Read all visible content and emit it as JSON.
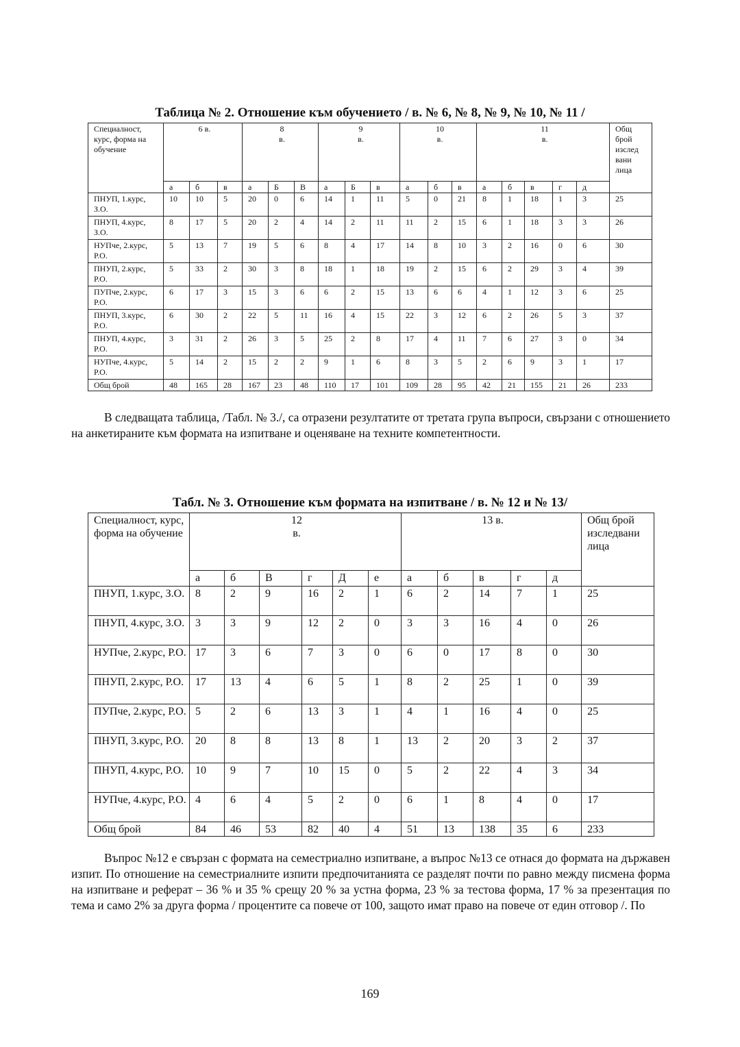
{
  "table2": {
    "caption": "Таблица № 2. Отношение към обучението / в. № 6, № 8, № 9, № 10, № 11 /",
    "row_header": "Специалност, курс, форма на обучение",
    "groups": [
      {
        "label_line1": "6 в.",
        "label_line2": "",
        "options": [
          "а",
          "б",
          "в"
        ]
      },
      {
        "label_line1": "8",
        "label_line2": "в.",
        "options": [
          "а",
          "Б",
          "В"
        ]
      },
      {
        "label_line1": "9",
        "label_line2": "в.",
        "options": [
          "а",
          "Б",
          "в"
        ]
      },
      {
        "label_line1": "10",
        "label_line2": "в.",
        "options": [
          "а",
          "б",
          "в"
        ]
      },
      {
        "label_line1": "11",
        "label_line2": "в.",
        "options": [
          "а",
          "б",
          "в",
          "г",
          "д"
        ]
      }
    ],
    "total_header": "Общ брой изслед вани лица",
    "rows": [
      {
        "label": "ПНУП, 1.курс, З.О.",
        "values": [
          "10",
          "10",
          "5",
          "20",
          "0",
          "6",
          "14",
          "1",
          "11",
          "5",
          "0",
          "21",
          "8",
          "1",
          "18",
          "1",
          "3"
        ],
        "total": "25"
      },
      {
        "label": "ПНУП, 4.курс, З.О.",
        "values": [
          "8",
          "17",
          "5",
          "20",
          "2",
          "4",
          "14",
          "2",
          "11",
          "11",
          "2",
          "15",
          "6",
          "1",
          "18",
          "3",
          "3"
        ],
        "total": "26"
      },
      {
        "label": "НУПче, 2.курс, Р.О.",
        "values": [
          "5",
          "13",
          "7",
          "19",
          "5",
          "6",
          "8",
          "4",
          "17",
          "14",
          "8",
          "10",
          "3",
          "2",
          "16",
          "0",
          "6"
        ],
        "total": "30"
      },
      {
        "label": "ПНУП, 2.курс, Р.О.",
        "values": [
          "5",
          "33",
          "2",
          "30",
          "3",
          "8",
          "18",
          "1",
          "18",
          "19",
          "2",
          "15",
          "6",
          "2",
          "29",
          "3",
          "4"
        ],
        "total": "39"
      },
      {
        "label": "ПУПче, 2.курс, Р.О.",
        "values": [
          "6",
          "17",
          "3",
          "15",
          "3",
          "6",
          "6",
          "2",
          "15",
          "13",
          "6",
          "6",
          "4",
          "1",
          "12",
          "3",
          "6"
        ],
        "total": "25"
      },
      {
        "label": "ПНУП, 3.курс, Р.О.",
        "values": [
          "6",
          "30",
          "2",
          "22",
          "5",
          "11",
          "16",
          "4",
          "15",
          "22",
          "3",
          "12",
          "6",
          "2",
          "26",
          "5",
          "3"
        ],
        "total": "37"
      },
      {
        "label": "ПНУП, 4.курс, Р.О.",
        "values": [
          "3",
          "31",
          "2",
          "26",
          "3",
          "5",
          "25",
          "2",
          "8",
          "17",
          "4",
          "11",
          "7",
          "6",
          "27",
          "3",
          "0"
        ],
        "total": "34"
      },
      {
        "label": "НУПче, 4.курс, Р.О.",
        "values": [
          "5",
          "14",
          "2",
          "15",
          "2",
          "2",
          "9",
          "1",
          "6",
          "8",
          "3",
          "5",
          "2",
          "6",
          "9",
          "3",
          "1"
        ],
        "total": "17"
      }
    ],
    "sum_row": {
      "label": "Общ брой",
      "values": [
        "48",
        "165",
        "28",
        "167",
        "23",
        "48",
        "110",
        "17",
        "101",
        "109",
        "28",
        "95",
        "42",
        "21",
        "155",
        "21",
        "26"
      ],
      "total": "233"
    }
  },
  "paragraph1": "В следващата таблица, /Табл. № 3./, са отразени резултатите от третата група въпроси, свързани с отношението на анкетираните към формата на изпитване и оценяване на техните компетентности.",
  "table3": {
    "caption": "Табл. № 3. Отношение към формата на изпитване / в. № 12 и № 13/",
    "row_header": "Специалност, курс, форма на обучение",
    "groups": [
      {
        "label_line1": "12",
        "label_line2": "в.",
        "options": [
          "а",
          "б",
          "В",
          "г",
          "Д",
          "е"
        ]
      },
      {
        "label_line1": "13 в.",
        "label_line2": "",
        "options": [
          "а",
          "б",
          "в",
          "г",
          "д"
        ]
      }
    ],
    "total_header": "Общ брой изследвани лица",
    "rows": [
      {
        "label": "ПНУП, 1.курс, З.О.",
        "values": [
          "8",
          "2",
          "9",
          "16",
          "2",
          "1",
          "6",
          "2",
          "14",
          "7",
          "1"
        ],
        "total": "25"
      },
      {
        "label": "ПНУП, 4.курс, З.О.",
        "values": [
          "3",
          "3",
          "9",
          "12",
          "2",
          "0",
          "3",
          "3",
          "16",
          "4",
          "0"
        ],
        "total": "26"
      },
      {
        "label": "НУПче, 2.курс, Р.О.",
        "values": [
          "17",
          "3",
          "6",
          "7",
          "3",
          "0",
          "6",
          "0",
          "17",
          "8",
          "0"
        ],
        "total": "30"
      },
      {
        "label": "ПНУП, 2.курс, Р.О.",
        "values": [
          "17",
          "13",
          "4",
          "6",
          "5",
          "1",
          "8",
          "2",
          "25",
          "1",
          "0"
        ],
        "total": "39"
      },
      {
        "label": "ПУПче, 2.курс, Р.О.",
        "values": [
          "5",
          "2",
          "6",
          "13",
          "3",
          "1",
          "4",
          "1",
          "16",
          "4",
          "0"
        ],
        "total": "25"
      },
      {
        "label": "ПНУП, 3.курс, Р.О.",
        "values": [
          "20",
          "8",
          "8",
          "13",
          "8",
          "1",
          "13",
          "2",
          "20",
          "3",
          "2"
        ],
        "total": "37"
      },
      {
        "label": "ПНУП, 4.курс, Р.О.",
        "values": [
          "10",
          "9",
          "7",
          "10",
          "15",
          "0",
          "5",
          "2",
          "22",
          "4",
          "3"
        ],
        "total": "34"
      },
      {
        "label": "НУПче, 4.курс, Р.О.",
        "values": [
          "4",
          "6",
          "4",
          "5",
          "2",
          "0",
          "6",
          "1",
          "8",
          "4",
          "0"
        ],
        "total": "17"
      }
    ],
    "sum_row": {
      "label": "Общ брой",
      "values": [
        "84",
        "46",
        "53",
        "82",
        "40",
        "4",
        "51",
        "13",
        "138",
        "35",
        "6"
      ],
      "total": "233"
    }
  },
  "paragraph2": "Въпрос №12 е свързан с формата на семестриално изпитване, а въпрос №13 се отнася до формата на държавен изпит. По отношение на семестриалните изпити предпочитанията се разделят почти по равно между писмена форма на изпитване и реферат – 36 % и 35 % срещу 20 % за устна форма, 23 % за тестова форма, 17 %  за презентация по тема и само 2% за друга форма / процентите са повече от 100, защото имат право на повече от един отговор /. По",
  "page_number": "169"
}
